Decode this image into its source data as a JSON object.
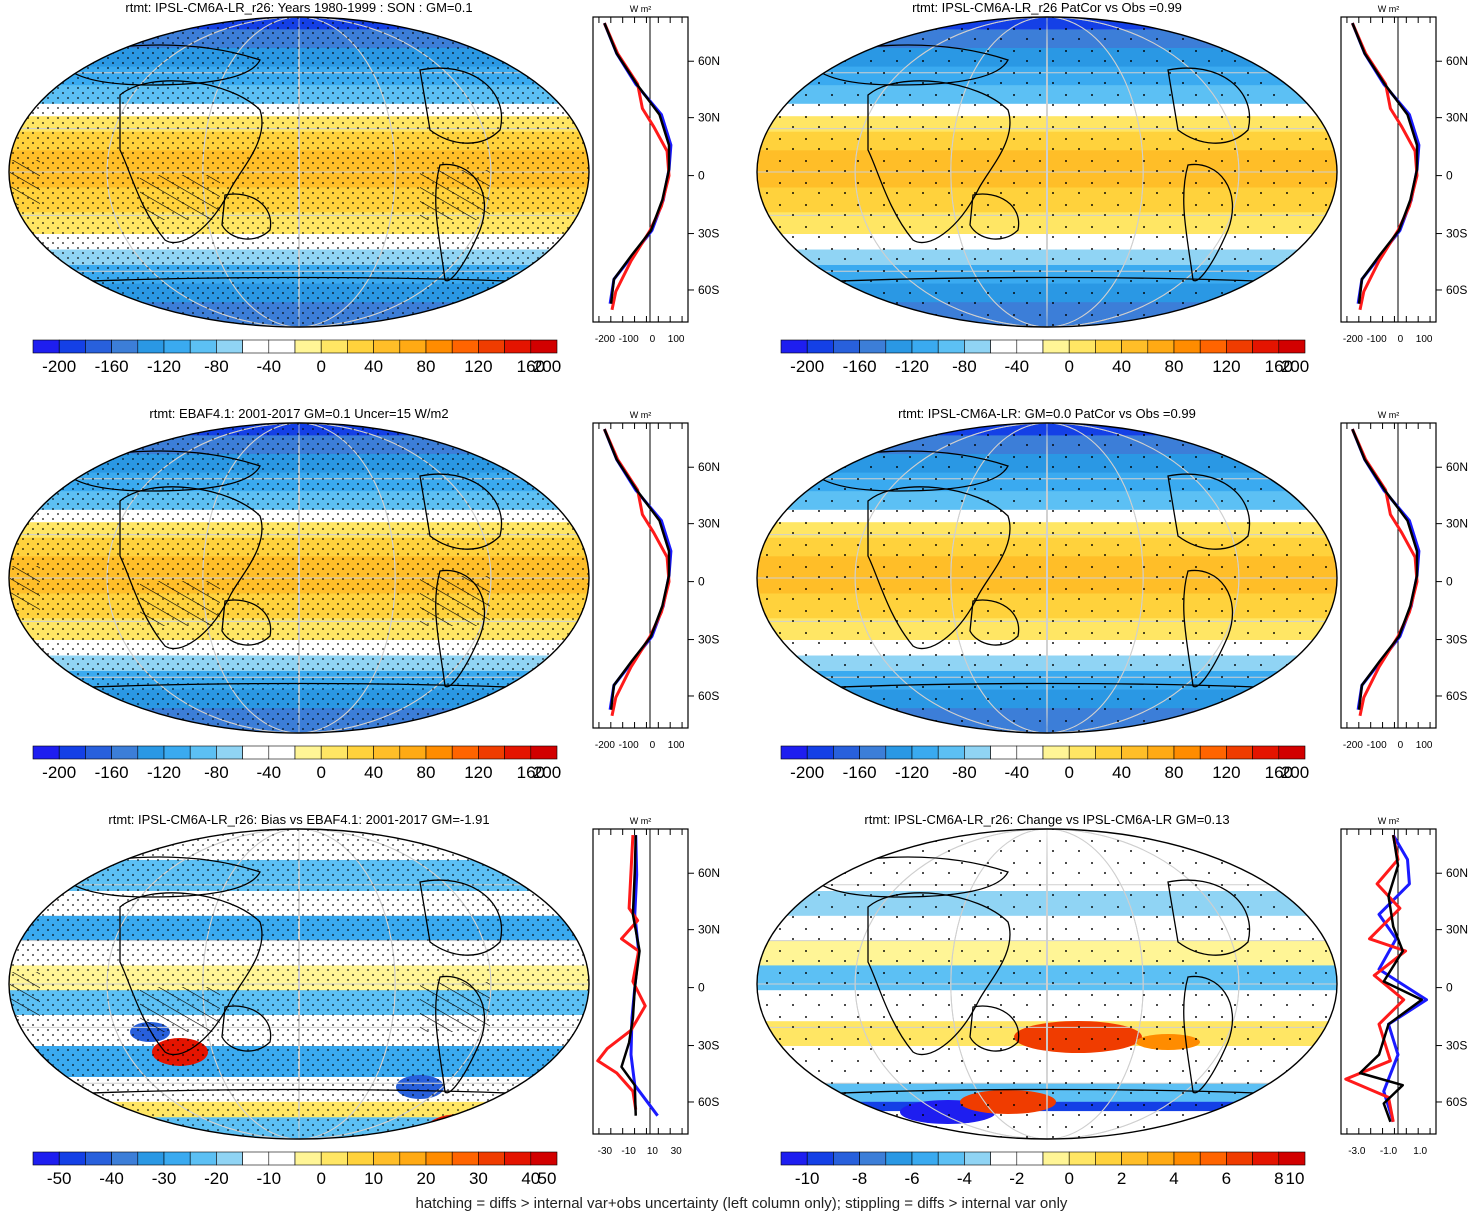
{
  "palette": [
    "#1e1ef0",
    "#1440e6",
    "#2860dc",
    "#3c7ed8",
    "#2a98e4",
    "#3aaaf0",
    "#5cc0f4",
    "#90d4f4",
    "#ffffff",
    "#ffffff",
    "#fff596",
    "#ffe664",
    "#ffd23c",
    "#ffbe28",
    "#ffaa14",
    "#ff8c00",
    "#ff6400",
    "#f03c00",
    "#e41400",
    "#d20000"
  ],
  "latitude_axis": {
    "ticks": [
      "60N",
      "30N",
      "0",
      "30S",
      "60S"
    ],
    "unit": "W m²"
  },
  "footer": "hatching = diffs > internal var+obs uncertainty (left column only); stippling = diffs > internal var only",
  "panels": [
    {
      "title": "rtmt: IPSL-CM6A-LR_r26: Years 1980-1999 : SON : GM=0.1",
      "colorbar_labels": [
        "-200",
        "-160",
        "-120",
        "-80",
        "-40",
        "0",
        "40",
        "80",
        "120",
        "160",
        "200"
      ],
      "zonal_ticks": [
        "-200",
        "-100",
        "0",
        "100"
      ],
      "field": "mean",
      "stipple": "dense",
      "hatch": true
    },
    {
      "title": "rtmt: IPSL-CM6A-LR_r26 PatCor vs Obs =0.99",
      "colorbar_labels": [
        "-200",
        "-160",
        "-120",
        "-80",
        "-40",
        "0",
        "40",
        "80",
        "120",
        "160",
        "200"
      ],
      "zonal_ticks": [
        "-200",
        "-100",
        "0",
        "100"
      ],
      "field": "mean",
      "stipple": "sparse",
      "hatch": false
    },
    {
      "title": "rtmt: EBAF4.1: 2001-2017 GM=0.1 Uncer=15 W/m2",
      "colorbar_labels": [
        "-200",
        "-160",
        "-120",
        "-80",
        "-40",
        "0",
        "40",
        "80",
        "120",
        "160",
        "200"
      ],
      "zonal_ticks": [
        "-200",
        "-100",
        "0",
        "100"
      ],
      "field": "mean",
      "stipple": "dense",
      "hatch": true
    },
    {
      "title": "rtmt: IPSL-CM6A-LR: GM=0.0 PatCor vs Obs =0.99",
      "colorbar_labels": [
        "-200",
        "-160",
        "-120",
        "-80",
        "-40",
        "0",
        "40",
        "80",
        "120",
        "160",
        "200"
      ],
      "zonal_ticks": [
        "-200",
        "-100",
        "0",
        "100"
      ],
      "field": "mean",
      "stipple": "sparse",
      "hatch": false
    },
    {
      "title": "rtmt: IPSL-CM6A-LR_r26: Bias vs EBAF4.1: 2001-2017  GM=-1.91",
      "colorbar_labels": [
        "-50",
        "-40",
        "-30",
        "-20",
        "-10",
        "0",
        "10",
        "20",
        "30",
        "40",
        "50"
      ],
      "zonal_ticks": [
        "-30",
        "-10",
        "10",
        "30"
      ],
      "field": "bias",
      "stipple": "dense",
      "hatch": true
    },
    {
      "title": "rtmt: IPSL-CM6A-LR_r26: Change vs IPSL-CM6A-LR GM=0.13",
      "colorbar_labels": [
        "-10",
        "-8",
        "-6",
        "-4",
        "-2",
        "0",
        "2",
        "4",
        "6",
        "8",
        "10"
      ],
      "zonal_ticks": [
        "-3.0",
        "-1.0",
        "1.0"
      ],
      "field": "change",
      "stipple": "sparse",
      "hatch": false
    }
  ]
}
